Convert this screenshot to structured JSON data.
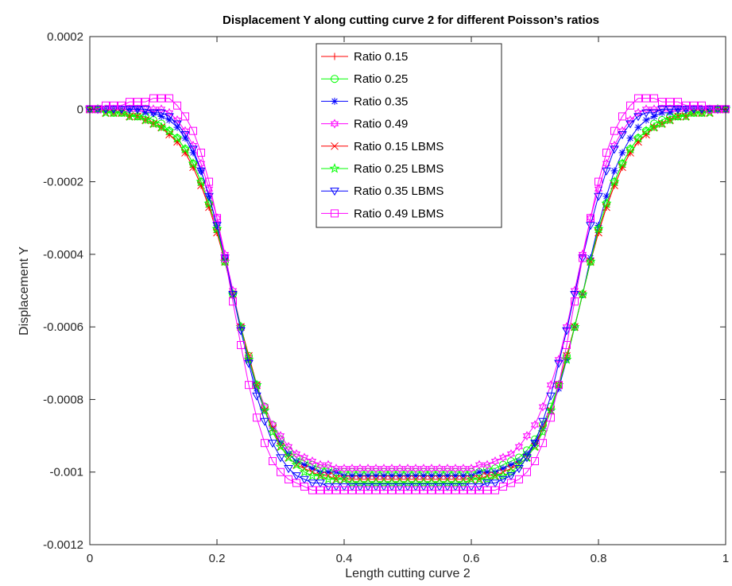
{
  "chart_data": {
    "type": "line",
    "title": "Displacement Y along cutting curve 2 for different Poisson’s ratios",
    "xlabel": "Length cutting curve 2",
    "ylabel": "Displacement Y",
    "xlim": [
      0,
      1
    ],
    "ylim": [
      -0.0012,
      0.0002
    ],
    "xticks": [
      "0",
      "0.2",
      "0.4",
      "0.6",
      "0.8",
      "1"
    ],
    "yticks": [
      "-0.0012",
      "-0.001",
      "-0.0008",
      "-0.0006",
      "-0.0004",
      "-0.0002",
      "0",
      "0.0002"
    ],
    "xtick_values": [
      0,
      0.2,
      0.4,
      0.6,
      0.8,
      1
    ],
    "ytick_values": [
      -0.0012,
      -0.001,
      -0.0008,
      -0.0006,
      -0.0004,
      -0.0002,
      0,
      0.0002
    ],
    "grid": false,
    "legend_position": "top-center",
    "x": [
      0,
      0.0125,
      0.025,
      0.0375,
      0.05,
      0.0625,
      0.075,
      0.0875,
      0.1,
      0.1125,
      0.125,
      0.1375,
      0.15,
      0.1625,
      0.175,
      0.1875,
      0.2,
      0.2125,
      0.225,
      0.2375,
      0.25,
      0.2625,
      0.275,
      0.2875,
      0.3,
      0.3125,
      0.325,
      0.3375,
      0.35,
      0.3625,
      0.375,
      0.3875,
      0.4,
      0.4125,
      0.425,
      0.4375,
      0.45,
      0.4625,
      0.475,
      0.4875,
      0.5,
      0.5125,
      0.525,
      0.5375,
      0.55,
      0.5625,
      0.575,
      0.5875,
      0.6,
      0.6125,
      0.625,
      0.6375,
      0.65,
      0.6625,
      0.675,
      0.6875,
      0.7,
      0.7125,
      0.725,
      0.7375,
      0.75,
      0.7625,
      0.775,
      0.7875,
      0.8,
      0.8125,
      0.825,
      0.8375,
      0.85,
      0.8625,
      0.875,
      0.8875,
      0.9,
      0.9125,
      0.925,
      0.9375,
      0.95,
      0.9625,
      0.975,
      0.9875,
      1
    ],
    "series": [
      {
        "name": "Ratio 0.15",
        "color": "#ff0000",
        "marker": "plus",
        "values": [
          0,
          0,
          0,
          -1e-05,
          -1e-05,
          -2e-05,
          -2e-05,
          -3e-05,
          -4e-05,
          -5e-05,
          -7e-05,
          -9e-05,
          -0.00012,
          -0.00016,
          -0.00021,
          -0.00027,
          -0.00034,
          -0.00042,
          -0.00051,
          -0.0006,
          -0.00068,
          -0.00076,
          -0.00083,
          -0.00088,
          -0.00092,
          -0.00095,
          -0.00097,
          -0.00098,
          -0.00099,
          -0.001,
          -0.001,
          -0.00101,
          -0.00101,
          -0.00101,
          -0.00101,
          -0.00101,
          -0.00101,
          -0.00101,
          -0.00101,
          -0.00101,
          -0.00101,
          -0.00101,
          -0.00101,
          -0.00101,
          -0.00101,
          -0.00101,
          -0.00101,
          -0.00101,
          -0.00101,
          -0.00101,
          -0.001,
          -0.001,
          -0.00099,
          -0.00098,
          -0.00097,
          -0.00095,
          -0.00092,
          -0.00088,
          -0.00083,
          -0.00076,
          -0.00068,
          -0.0006,
          -0.00051,
          -0.00042,
          -0.00034,
          -0.00027,
          -0.00021,
          -0.00016,
          -0.00012,
          -9e-05,
          -7e-05,
          -5e-05,
          -4e-05,
          -3e-05,
          -2e-05,
          -2e-05,
          -1e-05,
          -1e-05,
          0,
          0,
          0
        ]
      },
      {
        "name": "Ratio 0.25",
        "color": "#00ff00",
        "marker": "circle",
        "values": [
          0,
          0,
          0,
          -1e-05,
          -1e-05,
          -1e-05,
          -2e-05,
          -2e-05,
          -3e-05,
          -4e-05,
          -6e-05,
          -8e-05,
          -0.00011,
          -0.00015,
          -0.0002,
          -0.00026,
          -0.00033,
          -0.00042,
          -0.00051,
          -0.0006,
          -0.00068,
          -0.00076,
          -0.00082,
          -0.00087,
          -0.00091,
          -0.00094,
          -0.00096,
          -0.00097,
          -0.00098,
          -0.00099,
          -0.00099,
          -0.001,
          -0.001,
          -0.001,
          -0.001,
          -0.001,
          -0.001,
          -0.001,
          -0.001,
          -0.001,
          -0.001,
          -0.001,
          -0.001,
          -0.001,
          -0.001,
          -0.001,
          -0.001,
          -0.001,
          -0.001,
          -0.001,
          -0.00099,
          -0.00099,
          -0.00098,
          -0.00097,
          -0.00096,
          -0.00094,
          -0.00091,
          -0.00087,
          -0.00082,
          -0.00076,
          -0.00068,
          -0.0006,
          -0.00051,
          -0.00042,
          -0.00033,
          -0.00026,
          -0.0002,
          -0.00015,
          -0.00011,
          -8e-05,
          -6e-05,
          -4e-05,
          -3e-05,
          -2e-05,
          -2e-05,
          -1e-05,
          -1e-05,
          -1e-05,
          0,
          0,
          0
        ]
      },
      {
        "name": "Ratio 0.35",
        "color": "#0000ff",
        "marker": "asterisk",
        "values": [
          0,
          0,
          0,
          0,
          0,
          0,
          0,
          -1e-05,
          -1e-05,
          -2e-05,
          -3e-05,
          -5e-05,
          -8e-05,
          -0.00012,
          -0.00017,
          -0.00024,
          -0.00032,
          -0.00041,
          -0.00051,
          -0.0006,
          -0.00069,
          -0.00077,
          -0.00083,
          -0.00088,
          -0.00092,
          -0.00095,
          -0.00097,
          -0.00098,
          -0.00099,
          -0.001,
          -0.001,
          -0.001,
          -0.00101,
          -0.00101,
          -0.00101,
          -0.00101,
          -0.00101,
          -0.00101,
          -0.00101,
          -0.00101,
          -0.00101,
          -0.00101,
          -0.00101,
          -0.00101,
          -0.00101,
          -0.00101,
          -0.00101,
          -0.00101,
          -0.00101,
          -0.001,
          -0.001,
          -0.001,
          -0.00099,
          -0.00098,
          -0.00097,
          -0.00095,
          -0.00092,
          -0.00088,
          -0.00083,
          -0.00077,
          -0.00069,
          -0.0006,
          -0.00051,
          -0.00041,
          -0.00032,
          -0.00024,
          -0.00017,
          -0.00012,
          -8e-05,
          -5e-05,
          -3e-05,
          -2e-05,
          -1e-05,
          -1e-05,
          0,
          0,
          0,
          0,
          0,
          0,
          0
        ]
      },
      {
        "name": "Ratio 0.49",
        "color": "#ff00ff",
        "marker": "hexagram",
        "values": [
          0,
          0,
          0,
          0,
          0,
          0,
          0,
          0,
          0,
          0,
          -1e-05,
          -3e-05,
          -6e-05,
          -0.0001,
          -0.00015,
          -0.00022,
          -0.0003,
          -0.0004,
          -0.0005,
          -0.0006,
          -0.00069,
          -0.00076,
          -0.00082,
          -0.00087,
          -0.0009,
          -0.00093,
          -0.00095,
          -0.00096,
          -0.00097,
          -0.00098,
          -0.00098,
          -0.00099,
          -0.00099,
          -0.00099,
          -0.00099,
          -0.00099,
          -0.00099,
          -0.00099,
          -0.00099,
          -0.00099,
          -0.00099,
          -0.00099,
          -0.00099,
          -0.00099,
          -0.00099,
          -0.00099,
          -0.00099,
          -0.00099,
          -0.00099,
          -0.00098,
          -0.00098,
          -0.00097,
          -0.00096,
          -0.00095,
          -0.00093,
          -0.0009,
          -0.00087,
          -0.00082,
          -0.00076,
          -0.00069,
          -0.0006,
          -0.0005,
          -0.0004,
          -0.0003,
          -0.00022,
          -0.00015,
          -0.0001,
          -6e-05,
          -3e-05,
          -1e-05,
          0,
          0,
          0,
          0,
          0,
          0,
          0,
          0,
          0,
          0,
          0
        ]
      },
      {
        "name": "Ratio 0.15 LBMS",
        "color": "#ff0000",
        "marker": "x",
        "values": [
          0,
          0,
          -1e-05,
          -1e-05,
          -1e-05,
          -2e-05,
          -2e-05,
          -3e-05,
          -4e-05,
          -5e-05,
          -7e-05,
          -9e-05,
          -0.00012,
          -0.00016,
          -0.00021,
          -0.00027,
          -0.00034,
          -0.00042,
          -0.00051,
          -0.0006,
          -0.00068,
          -0.00076,
          -0.00083,
          -0.00088,
          -0.00093,
          -0.00096,
          -0.00098,
          -0.00099,
          -0.001,
          -0.00101,
          -0.00101,
          -0.00102,
          -0.00102,
          -0.00102,
          -0.00102,
          -0.00102,
          -0.00102,
          -0.00102,
          -0.00102,
          -0.00102,
          -0.00102,
          -0.00102,
          -0.00102,
          -0.00102,
          -0.00102,
          -0.00102,
          -0.00102,
          -0.00102,
          -0.00102,
          -0.00102,
          -0.00101,
          -0.00101,
          -0.001,
          -0.00099,
          -0.00098,
          -0.00096,
          -0.00093,
          -0.00088,
          -0.00083,
          -0.00076,
          -0.00068,
          -0.0006,
          -0.00051,
          -0.00042,
          -0.00034,
          -0.00027,
          -0.00021,
          -0.00016,
          -0.00012,
          -9e-05,
          -7e-05,
          -5e-05,
          -4e-05,
          -3e-05,
          -2e-05,
          -2e-05,
          -1e-05,
          -1e-05,
          -1e-05,
          0,
          0
        ]
      },
      {
        "name": "Ratio 0.25 LBMS",
        "color": "#00ff00",
        "marker": "pentagram",
        "values": [
          0,
          0,
          -1e-05,
          -1e-05,
          -1e-05,
          -2e-05,
          -2e-05,
          -3e-05,
          -4e-05,
          -5e-05,
          -6e-05,
          -8e-05,
          -0.00011,
          -0.00015,
          -0.0002,
          -0.00026,
          -0.00033,
          -0.00042,
          -0.00051,
          -0.0006,
          -0.00069,
          -0.00076,
          -0.00083,
          -0.00089,
          -0.00093,
          -0.00096,
          -0.00098,
          -0.001,
          -0.00101,
          -0.00101,
          -0.00102,
          -0.00102,
          -0.00102,
          -0.00103,
          -0.00103,
          -0.00103,
          -0.00103,
          -0.00103,
          -0.00103,
          -0.00103,
          -0.00103,
          -0.00103,
          -0.00103,
          -0.00103,
          -0.00103,
          -0.00103,
          -0.00103,
          -0.00103,
          -0.00102,
          -0.00102,
          -0.00102,
          -0.00101,
          -0.00101,
          -0.001,
          -0.00098,
          -0.00096,
          -0.00093,
          -0.00089,
          -0.00083,
          -0.00076,
          -0.00069,
          -0.0006,
          -0.00051,
          -0.00042,
          -0.00033,
          -0.00026,
          -0.0002,
          -0.00015,
          -0.00011,
          -8e-05,
          -6e-05,
          -5e-05,
          -4e-05,
          -3e-05,
          -2e-05,
          -2e-05,
          -1e-05,
          -1e-05,
          -1e-05,
          0,
          0
        ]
      },
      {
        "name": "Ratio 0.35 LBMS",
        "color": "#0000ff",
        "marker": "triangle-down",
        "values": [
          0,
          0,
          0,
          0,
          0,
          0,
          0,
          0,
          -1e-05,
          -1e-05,
          -2e-05,
          -4e-05,
          -7e-05,
          -0.00011,
          -0.00017,
          -0.00024,
          -0.00032,
          -0.00041,
          -0.00051,
          -0.00061,
          -0.0007,
          -0.00079,
          -0.00086,
          -0.00092,
          -0.00096,
          -0.00099,
          -0.00101,
          -0.00102,
          -0.00103,
          -0.00103,
          -0.00104,
          -0.00104,
          -0.00104,
          -0.00104,
          -0.00104,
          -0.00104,
          -0.00104,
          -0.00104,
          -0.00104,
          -0.00104,
          -0.00104,
          -0.00104,
          -0.00104,
          -0.00104,
          -0.00104,
          -0.00104,
          -0.00104,
          -0.00104,
          -0.00104,
          -0.00104,
          -0.00103,
          -0.00103,
          -0.00102,
          -0.00101,
          -0.00099,
          -0.00096,
          -0.00092,
          -0.00086,
          -0.00079,
          -0.0007,
          -0.00061,
          -0.00051,
          -0.00041,
          -0.00032,
          -0.00024,
          -0.00017,
          -0.00011,
          -7e-05,
          -4e-05,
          -2e-05,
          -1e-05,
          -1e-05,
          0,
          0,
          0,
          0,
          0,
          0,
          0,
          0,
          0
        ]
      },
      {
        "name": "Ratio 0.49 LBMS",
        "color": "#ff00ff",
        "marker": "square",
        "values": [
          0,
          0,
          1e-05,
          1e-05,
          1e-05,
          2e-05,
          2e-05,
          2e-05,
          3e-05,
          3e-05,
          3e-05,
          1e-05,
          -2e-05,
          -6e-05,
          -0.00012,
          -0.0002,
          -0.0003,
          -0.00041,
          -0.00053,
          -0.00065,
          -0.00076,
          -0.00085,
          -0.00092,
          -0.00097,
          -0.001,
          -0.00102,
          -0.00103,
          -0.00104,
          -0.00105,
          -0.00105,
          -0.00105,
          -0.00105,
          -0.00105,
          -0.00105,
          -0.00105,
          -0.00105,
          -0.00105,
          -0.00105,
          -0.00105,
          -0.00105,
          -0.00105,
          -0.00105,
          -0.00105,
          -0.00105,
          -0.00105,
          -0.00105,
          -0.00105,
          -0.00105,
          -0.00105,
          -0.00105,
          -0.00105,
          -0.00105,
          -0.00104,
          -0.00103,
          -0.00102,
          -0.001,
          -0.00097,
          -0.00092,
          -0.00085,
          -0.00076,
          -0.00065,
          -0.00053,
          -0.00041,
          -0.0003,
          -0.0002,
          -0.00012,
          -6e-05,
          -2e-05,
          1e-05,
          3e-05,
          3e-05,
          3e-05,
          2e-05,
          2e-05,
          2e-05,
          1e-05,
          1e-05,
          1e-05,
          0,
          0,
          0
        ]
      }
    ]
  }
}
